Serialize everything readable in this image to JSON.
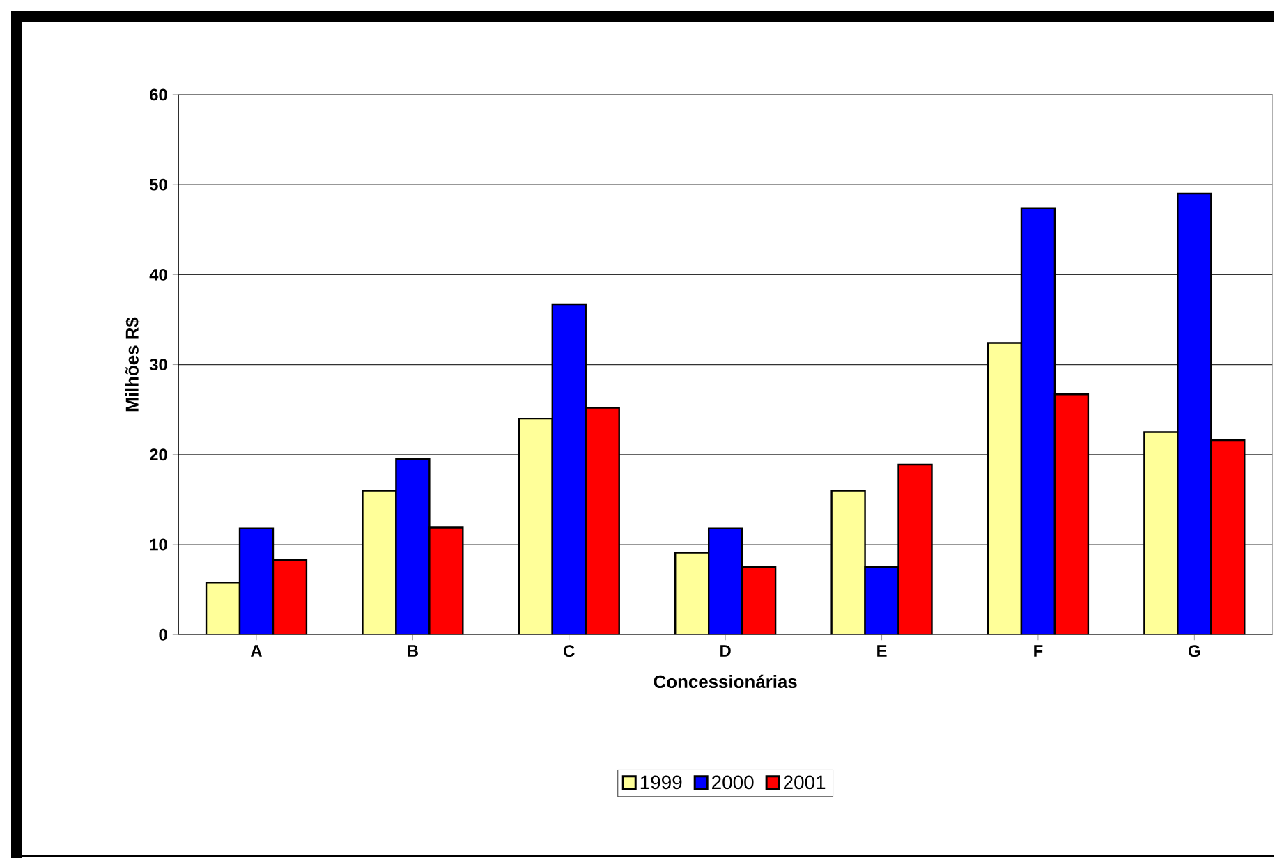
{
  "chart_data": {
    "type": "bar",
    "xlabel": "Concessionárias",
    "ylabel": "Milhões R$",
    "categories": [
      "A",
      "B",
      "C",
      "D",
      "E",
      "F",
      "G"
    ],
    "series": [
      {
        "name": "1999",
        "color": "#ffff99",
        "values": [
          5.8,
          16.0,
          24.0,
          9.1,
          16.0,
          32.4,
          22.5
        ]
      },
      {
        "name": "2000",
        "color": "#0000ff",
        "values": [
          11.8,
          19.5,
          36.7,
          11.8,
          7.5,
          47.4,
          49.0
        ]
      },
      {
        "name": "2001",
        "color": "#ff0000",
        "values": [
          8.3,
          11.9,
          25.2,
          7.5,
          18.9,
          26.7,
          21.6
        ]
      }
    ],
    "ylim": [
      0,
      60
    ],
    "yticks": [
      0,
      10,
      20,
      30,
      40,
      50,
      60
    ],
    "grid": "y",
    "legend": "bottom"
  }
}
